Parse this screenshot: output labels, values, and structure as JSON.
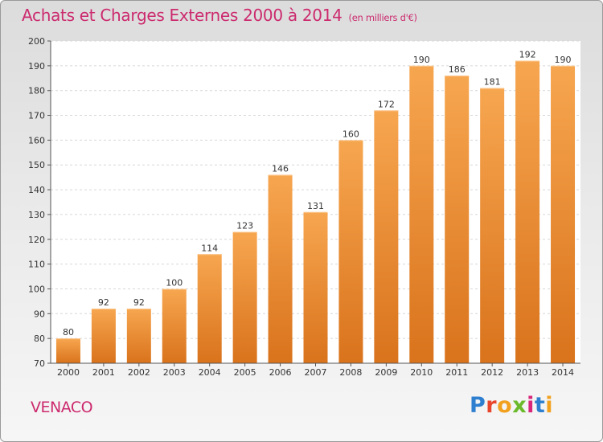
{
  "title": "Achats et Charges Externes 2000 à 2014",
  "subtitle": "(en milliers d'€)",
  "commune": "VENACO",
  "logo": {
    "letters": [
      "P",
      "r",
      "o",
      "x",
      "i",
      "t",
      "i"
    ],
    "colors": [
      "#2f7fd0",
      "#e8452c",
      "#f2a11f",
      "#6cba2c",
      "#d8267a",
      "#2f7fd0",
      "#f2a11f"
    ]
  },
  "colors": {
    "accent": "#cc2a6e",
    "bar_light": "#f7a650",
    "bar_dark": "#d9731c"
  },
  "chart_data": {
    "type": "bar",
    "categories": [
      "2000",
      "2001",
      "2002",
      "2003",
      "2004",
      "2005",
      "2006",
      "2007",
      "2008",
      "2009",
      "2010",
      "2011",
      "2012",
      "2013",
      "2014"
    ],
    "values": [
      80,
      92,
      92,
      100,
      114,
      123,
      146,
      131,
      160,
      172,
      190,
      186,
      181,
      192,
      190
    ],
    "ylim": [
      70,
      200
    ],
    "yticks": [
      70,
      80,
      90,
      100,
      110,
      120,
      130,
      140,
      150,
      160,
      170,
      180,
      190,
      200
    ],
    "grid": true,
    "data_labels": true
  }
}
